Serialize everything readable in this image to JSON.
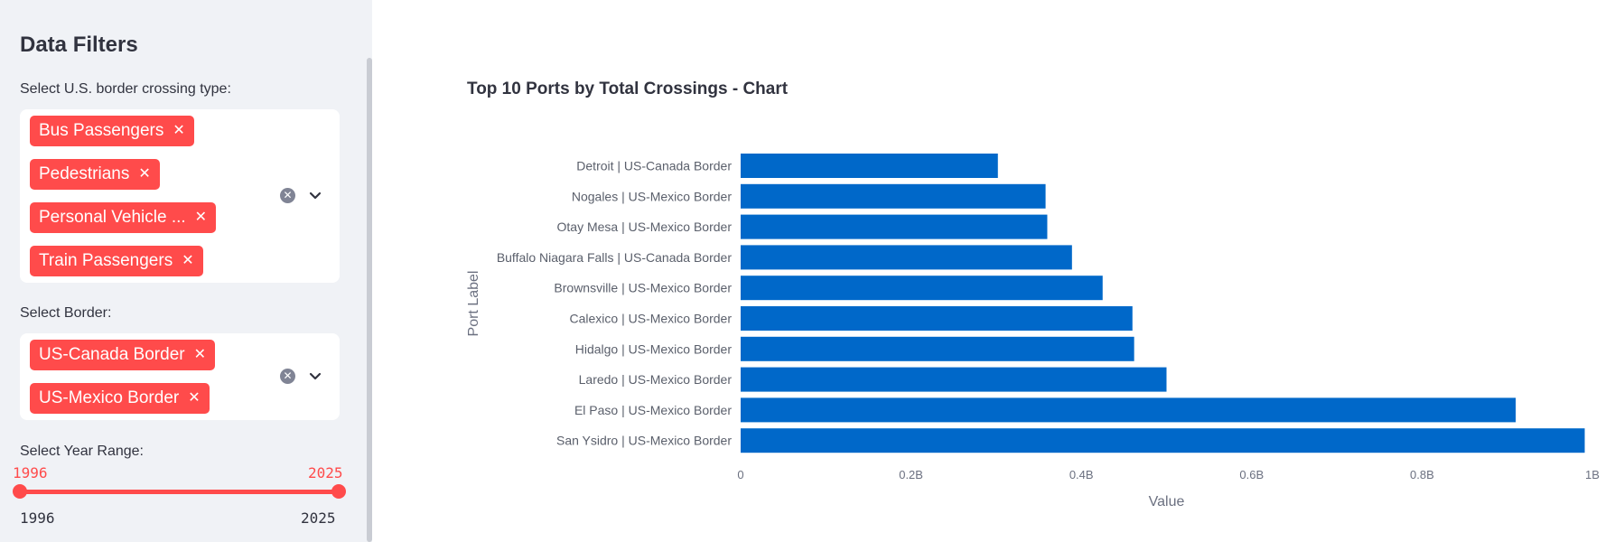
{
  "sidebar": {
    "title": "Data Filters",
    "crossing_type": {
      "label": "Select U.S. border crossing type:",
      "chips": [
        "Bus Passengers",
        "Pedestrians",
        "Personal Vehicle ...",
        "Train Passengers"
      ]
    },
    "border": {
      "label": "Select Border:",
      "chips": [
        "US-Canada Border",
        "US-Mexico Border"
      ]
    },
    "year_range": {
      "label": "Select Year Range:",
      "selected_min": "1996",
      "selected_max": "2025",
      "range_min": "1996",
      "range_max": "2025"
    }
  },
  "main": {
    "chart_title": "Top 10 Ports by Total Crossings - Chart"
  },
  "colors": {
    "accent": "#ff4b4b",
    "bar": "#0068c9",
    "sidebar_bg": "#f0f2f6"
  },
  "chart_data": {
    "type": "bar",
    "orientation": "horizontal",
    "title": "Top 10 Ports by Total Crossings - Chart",
    "xlabel": "Value",
    "ylabel": "Port Label",
    "categories": [
      "Detroit | US-Canada Border",
      "Nogales | US-Mexico Border",
      "Otay Mesa | US-Mexico Border",
      "Buffalo Niagara Falls | US-Canada Border",
      "Brownsville | US-Mexico Border",
      "Calexico | US-Mexico Border",
      "Hidalgo | US-Mexico Border",
      "Laredo | US-Mexico Border",
      "El Paso | US-Mexico Border",
      "San Ysidro | US-Mexico Border"
    ],
    "values": [
      302000000,
      358000000,
      360000000,
      389000000,
      425000000,
      460000000,
      462000000,
      500000000,
      910000000,
      991000000
    ],
    "xlim": [
      0,
      1000000000
    ],
    "xticks": [
      "0",
      "0.2B",
      "0.4B",
      "0.6B",
      "0.8B",
      "1B"
    ],
    "grid": false
  }
}
